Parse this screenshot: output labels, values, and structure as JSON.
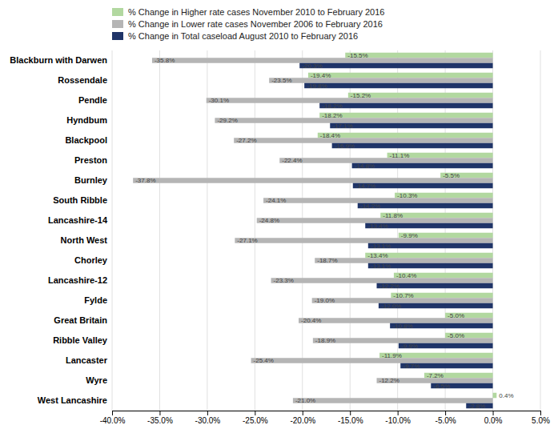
{
  "chart_data": {
    "type": "bar",
    "orientation": "horizontal",
    "categories": [
      "Blackburn with Darwen",
      "Rossendale",
      "Pendle",
      "Hyndbum",
      "Blackpool",
      "Preston",
      "Burnley",
      "South Ribble",
      "Lancashire-14",
      "North West",
      "Chorley",
      "Lancashire-12",
      "Fylde",
      "Great Britain",
      "Ribble Valley",
      "Lancaster",
      "Wyre",
      "West Lancashire"
    ],
    "series": [
      {
        "name": "% Change in Higher rate cases November 2010 to February 2016",
        "color": "#b2d8a0",
        "values": [
          -15.5,
          -19.4,
          -15.2,
          -18.2,
          -18.4,
          -11.1,
          -5.5,
          -10.3,
          -11.8,
          -9.9,
          -13.4,
          -10.4,
          -10.7,
          -5.0,
          -5.0,
          -11.9,
          -7.2,
          0.4
        ],
        "value_labels": [
          "-15.5%",
          "-19.4%",
          "-15.2%",
          "-18.2%",
          "-18.4%",
          "-11.1%",
          "-5.5%",
          "-10.3%",
          "-11.8%",
          "-9.9%",
          "-13.4%",
          "-10.4%",
          "-10.7%",
          "-5.0%",
          "-5.0%",
          "-11.9%",
          "-7.2%",
          "0.4%"
        ]
      },
      {
        "name": "% Change in Lower rate cases November 2006 to February 2016",
        "color": "#b5b5b5",
        "values": [
          -35.8,
          -23.5,
          -30.1,
          -29.2,
          -27.2,
          -22.4,
          -37.8,
          -24.1,
          -24.8,
          -27.1,
          -18.7,
          -23.3,
          -19.0,
          -20.4,
          -18.9,
          -25.4,
          -12.2,
          -21.0
        ],
        "value_labels": [
          "-35.8%",
          "-23.5%",
          "-30.1%",
          "-29.2%",
          "-27.2%",
          "-22.4%",
          "-37.8%",
          "-24.1%",
          "-24.8%",
          "-27.1%",
          "-18.7%",
          "-23.3%",
          "-19.0%",
          "-20.4%",
          "-18.9%",
          "-25.4%",
          "-12.2%",
          "-21.0%"
        ]
      },
      {
        "name": "% Change in Total caseload August 2010 to February 2016",
        "color": "#1f3468",
        "values": [
          -20.3,
          -19.8,
          -18.2,
          -17.1,
          -16.9,
          -14.8,
          -14.7,
          -14.2,
          -13.4,
          -13.1,
          -13.1,
          -12.2,
          -12.0,
          -10.8,
          -9.9,
          -9.7,
          -6.5,
          -2.8
        ],
        "value_labels": [
          "-20.3%",
          "-19.8%",
          "-18.2%",
          "-17.1%",
          "-16.9%",
          "-14.8%",
          "-14.7%",
          "-14.2%",
          "-13.4%",
          "-13.1%",
          "-13.1%",
          "-12.2%",
          "-12.0%",
          "-10.8%",
          "-9.9%",
          "-9.7%",
          "-6.5%",
          "-2.8%"
        ]
      }
    ],
    "xlim": [
      -40,
      5
    ],
    "xticks": [
      {
        "value": -40,
        "label": "-40.0%"
      },
      {
        "value": -35,
        "label": "-35.0%"
      },
      {
        "value": -30,
        "label": "-30.0%"
      },
      {
        "value": -25,
        "label": "-25.0%"
      },
      {
        "value": -20,
        "label": "-20.0%"
      },
      {
        "value": -15,
        "label": "-15.0%"
      },
      {
        "value": -10,
        "label": "-10.0%"
      },
      {
        "value": -5,
        "label": "-5.0%"
      },
      {
        "value": 0,
        "label": "0.0%"
      },
      {
        "value": 5,
        "label": "5.0%"
      }
    ],
    "grid": true,
    "legend": "upper left",
    "data_labels": true
  }
}
